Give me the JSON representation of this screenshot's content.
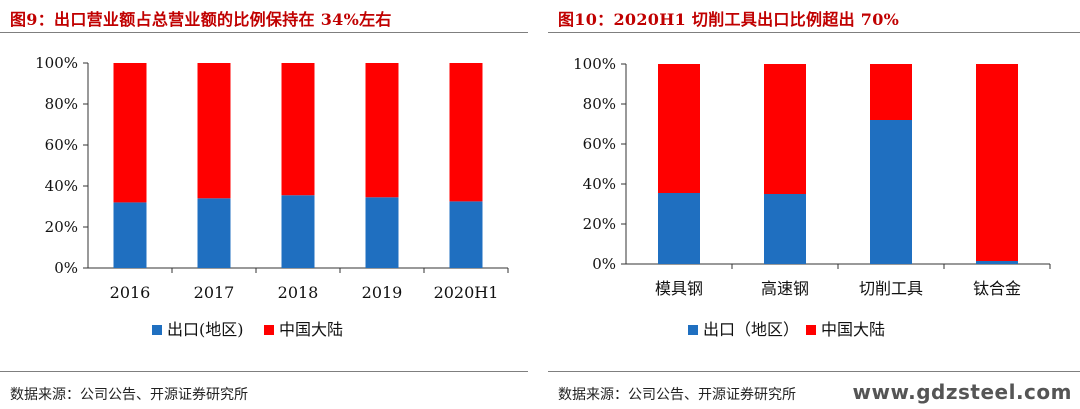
{
  "colors": {
    "export": "#1f6fc0",
    "domestic": "#ff0000",
    "title": "#c00000"
  },
  "left": {
    "title": "图9：出口营业额占总营业额的比例保持在 34%左右",
    "source": "数据来源：公司公告、开源证券研究所"
  },
  "right": {
    "title": "图10：2020H1 切削工具出口比例超出 70%",
    "source": "数据来源：公司公告、开源证券研究所"
  },
  "watermark": "www.gdzsteel.com",
  "chart_data": [
    {
      "type": "bar",
      "stacked": true,
      "categories": [
        "2016",
        "2017",
        "2018",
        "2019",
        "2020H1"
      ],
      "series": [
        {
          "name": "出口(地区)",
          "values": [
            32,
            34,
            35.5,
            34.5,
            32.5
          ],
          "color": "#1f6fc0"
        },
        {
          "name": "中国大陆",
          "values": [
            68,
            66,
            64.5,
            65.5,
            67.5
          ],
          "color": "#ff0000"
        }
      ],
      "yticks": [
        "0%",
        "20%",
        "40%",
        "60%",
        "80%",
        "100%"
      ],
      "ylim": [
        0,
        100
      ],
      "legend": "bottom"
    },
    {
      "type": "bar",
      "stacked": true,
      "categories": [
        "模具钢",
        "高速钢",
        "切削工具",
        "钛合金"
      ],
      "series": [
        {
          "name": "出口（地区）",
          "values": [
            35.5,
            35,
            72,
            1.5
          ],
          "color": "#1f6fc0"
        },
        {
          "name": "中国大陆",
          "values": [
            64.5,
            65,
            28,
            98.5
          ],
          "color": "#ff0000"
        }
      ],
      "yticks": [
        "0%",
        "20%",
        "40%",
        "60%",
        "80%",
        "100%"
      ],
      "ylim": [
        0,
        100
      ],
      "legend": "bottom"
    }
  ]
}
